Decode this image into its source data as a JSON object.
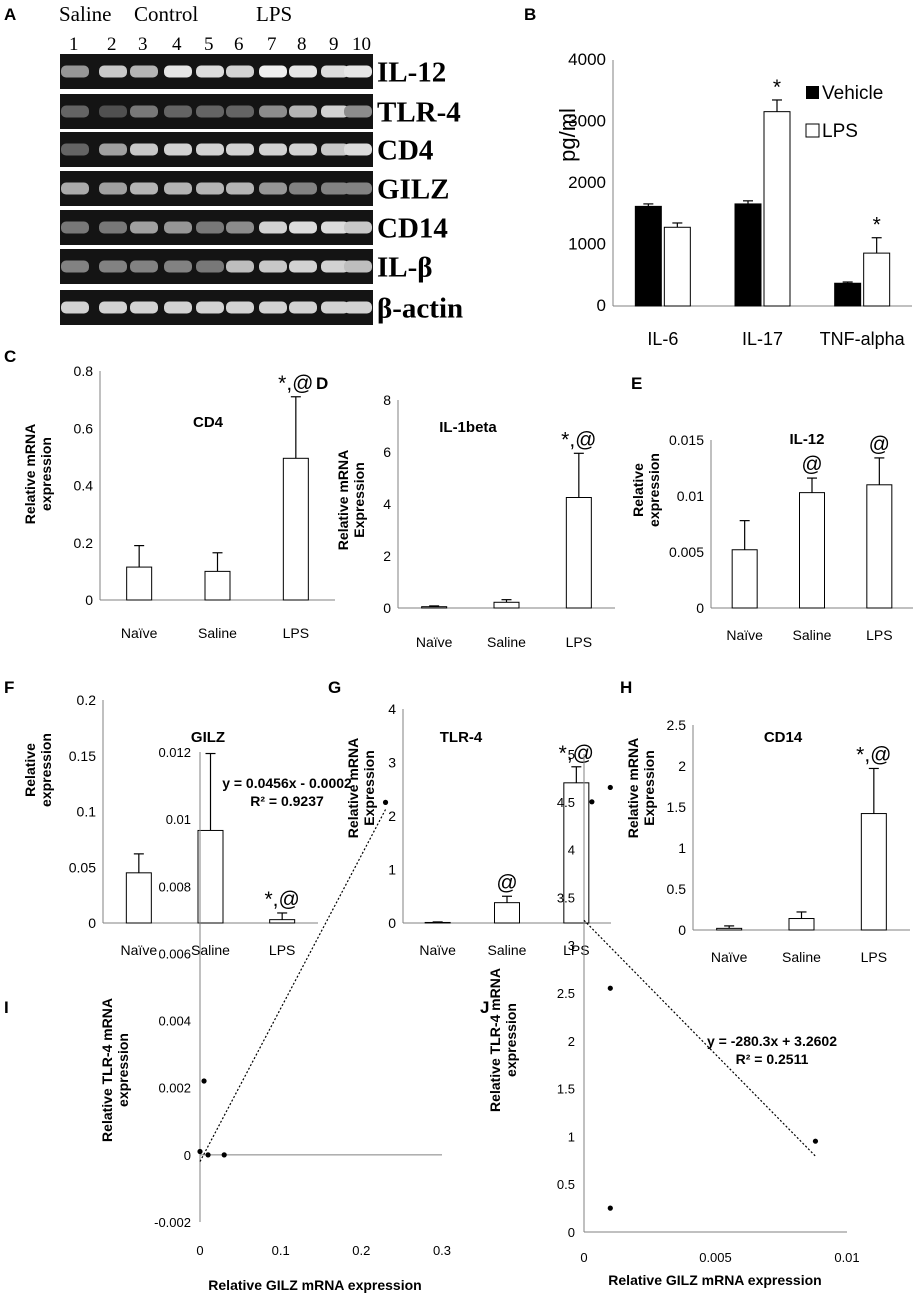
{
  "figure": {
    "panel_labels": [
      "A",
      "B",
      "C",
      "D",
      "E",
      "F",
      "G",
      "H",
      "I",
      "J"
    ]
  },
  "gel": {
    "groups": [
      "Saline",
      "Control",
      "LPS"
    ],
    "lanes": [
      "1",
      "2",
      "3",
      "4",
      "5",
      "6",
      "7",
      "8",
      "9",
      "10"
    ],
    "genes": [
      "IL-12",
      "TLR-4",
      "CD4",
      "GILZ",
      "CD14",
      "IL-β",
      "β-actin"
    ]
  },
  "chart_data": [
    {
      "panel": "B",
      "type": "bar",
      "categories": [
        "IL-6",
        "IL-17",
        "TNF-alpha"
      ],
      "series": [
        {
          "name": "Vehicle",
          "values": [
            1620,
            1660,
            370
          ],
          "errors": [
            40,
            50,
            20
          ],
          "color": "#000000"
        },
        {
          "name": "LPS",
          "values": [
            1280,
            3160,
            860
          ],
          "errors": [
            70,
            190,
            250
          ],
          "color": "#ffffff"
        }
      ],
      "annotations": [
        {
          "category": "IL-17",
          "series": "LPS",
          "text": "*"
        },
        {
          "category": "TNF-alpha",
          "series": "LPS",
          "text": "*"
        }
      ],
      "ylabel": "pg/ml",
      "ylim": [
        0,
        4000
      ],
      "yticks": [
        "0",
        "1000",
        "2000",
        "3000",
        "4000"
      ],
      "legend": "top-right"
    },
    {
      "panel": "C",
      "type": "bar",
      "title": "CD4",
      "categories": [
        "Naïve",
        "Saline",
        "LPS"
      ],
      "values": [
        0.115,
        0.1,
        0.495
      ],
      "errors": [
        0.075,
        0.065,
        0.215
      ],
      "annotations": [
        "",
        "",
        "*,@"
      ],
      "ylabel": "Relative mRNA expression",
      "ylim": [
        0,
        0.8
      ],
      "yticks": [
        "0",
        "0.2",
        "0.4",
        "0.6",
        "0.8"
      ]
    },
    {
      "panel": "D",
      "type": "bar",
      "title": "IL-1beta",
      "categories": [
        "Naïve",
        "Saline",
        "LPS"
      ],
      "values": [
        0.05,
        0.22,
        4.25
      ],
      "errors": [
        0.03,
        0.1,
        1.7
      ],
      "annotations": [
        "",
        "",
        "*,@"
      ],
      "ylabel": "Relative mRNA Expression",
      "ylim": [
        0,
        8
      ],
      "yticks": [
        "0",
        "2",
        "4",
        "6",
        "8"
      ]
    },
    {
      "panel": "E",
      "type": "bar",
      "title": "IL-12",
      "categories": [
        "Naïve",
        "Saline",
        "LPS"
      ],
      "values": [
        0.0052,
        0.0103,
        0.011
      ],
      "errors": [
        0.0026,
        0.0013,
        0.0024
      ],
      "annotations": [
        "",
        "@",
        "@"
      ],
      "ylabel": "Relative expression",
      "ylim": [
        0,
        0.015
      ],
      "yticks": [
        "0",
        "0.005",
        "0.01",
        "0.015"
      ]
    },
    {
      "panel": "F",
      "type": "bar",
      "title": "GILZ",
      "categories": [
        "Naïve",
        "Saline",
        "LPS"
      ],
      "values": [
        0.045,
        0.083,
        0.003
      ],
      "errors": [
        0.017,
        0.069,
        0.006
      ],
      "annotations": [
        "",
        "",
        "*,@"
      ],
      "ylabel": "Relative expression",
      "ylim": [
        0,
        0.2
      ],
      "yticks": [
        "0",
        "0.05",
        "0.1",
        "0.15",
        "0.2"
      ]
    },
    {
      "panel": "G",
      "type": "bar",
      "title": "TLR-4",
      "categories": [
        "Naïve",
        "Saline",
        "LPS"
      ],
      "values": [
        0.01,
        0.38,
        2.62
      ],
      "errors": [
        0.01,
        0.12,
        0.3
      ],
      "annotations": [
        "",
        "@",
        "*,@"
      ],
      "ylabel": "Relative mRNA Expression",
      "ylim": [
        0,
        4
      ],
      "yticks": [
        "0",
        "1",
        "2",
        "3",
        "4"
      ]
    },
    {
      "panel": "H",
      "type": "bar",
      "title": "CD14",
      "categories": [
        "Naïve",
        "Saline",
        "LPS"
      ],
      "values": [
        0.02,
        0.14,
        1.42
      ],
      "errors": [
        0.03,
        0.08,
        0.55
      ],
      "annotations": [
        "",
        "",
        "*,@"
      ],
      "ylabel": "Relative mRNA Expression",
      "ylim": [
        0,
        2.5
      ],
      "yticks": [
        "0",
        "0.5",
        "1",
        "1.5",
        "2",
        "2.5"
      ]
    },
    {
      "panel": "I",
      "type": "scatter",
      "points": [
        [
          0.0,
          0.0001
        ],
        [
          0.005,
          0.0022
        ],
        [
          0.01,
          0.0
        ],
        [
          0.03,
          0.0
        ],
        [
          0.23,
          0.0105
        ]
      ],
      "trendline": {
        "slope": 0.0456,
        "intercept": -0.0002,
        "x_range": [
          0.0,
          0.23
        ]
      },
      "equation": "y = 0.0456x - 0.0002",
      "r2": "R² = 0.9237",
      "xlabel": "Relative GILZ mRNA expression",
      "ylabel": "Relative TLR-4 mRNA expression",
      "xlim": [
        0,
        0.3
      ],
      "ylim": [
        -0.002,
        0.012
      ],
      "xticks": [
        "0",
        "0.1",
        "0.2",
        "0.3"
      ],
      "yticks": [
        "-0.002",
        "0",
        "0.002",
        "0.004",
        "0.006",
        "0.008",
        "0.01",
        "0.012"
      ]
    },
    {
      "panel": "J",
      "type": "scatter",
      "points": [
        [
          0.0003,
          4.5
        ],
        [
          0.001,
          4.65
        ],
        [
          0.001,
          2.55
        ],
        [
          0.001,
          0.25
        ],
        [
          0.0088,
          0.95
        ]
      ],
      "trendline": {
        "slope": -280.3,
        "intercept": 3.2602,
        "x_range": [
          0.0,
          0.0088
        ]
      },
      "equation": "y = -280.3x + 3.2602",
      "r2": "R² = 0.2511",
      "xlabel": "Relative GILZ mRNA expression",
      "ylabel": "Relative TLR-4 mRNA expression",
      "xlim": [
        0,
        0.01
      ],
      "ylim": [
        0,
        5
      ],
      "xticks": [
        "0",
        "0.005",
        "0.01"
      ],
      "yticks": [
        "0",
        "0.5",
        "1",
        "1.5",
        "2",
        "2.5",
        "3",
        "3.5",
        "4",
        "4.5",
        "5"
      ]
    }
  ]
}
